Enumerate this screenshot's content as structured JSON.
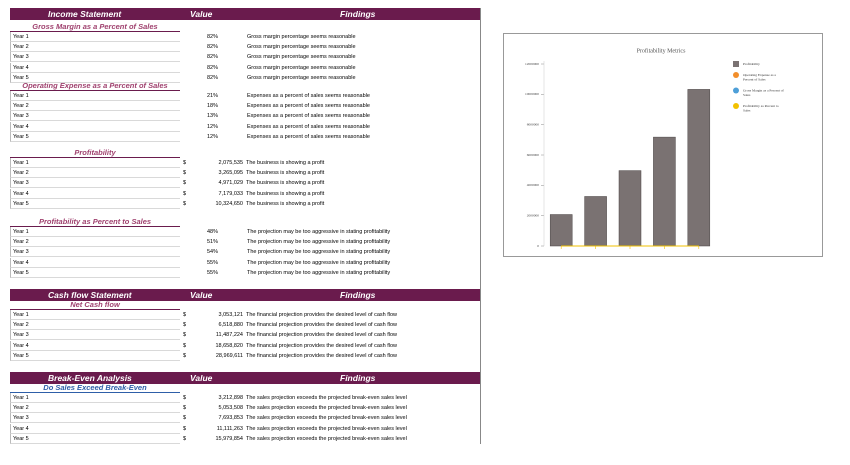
{
  "sections": [
    {
      "header": [
        "Income Statement",
        "Value",
        "Findings"
      ],
      "groups": [
        {
          "title": "Gross Margin as a Percent of Sales",
          "rows": [
            [
              "Year 1",
              "82%",
              "Gross margin percentage seems reasonable"
            ],
            [
              "Year 2",
              "82%",
              "Gross margin percentage seems reasonable"
            ],
            [
              "Year 3",
              "82%",
              "Gross margin percentage seems reasonable"
            ],
            [
              "Year 4",
              "82%",
              "Gross margin percentage seems reasonable"
            ],
            [
              "Year 5",
              "82%",
              "Gross margin percentage seems reasonable"
            ]
          ]
        },
        {
          "title": "Operating Expense as a Percent of Sales",
          "rows": [
            [
              "Year 1",
              "21%",
              "Expenses as a percent of sales seems reasonable"
            ],
            [
              "Year 2",
              "18%",
              "Expenses as a percent of sales seems reasonable"
            ],
            [
              "Year 3",
              "13%",
              "Expenses as a percent of sales seems reasonable"
            ],
            [
              "Year 4",
              "12%",
              "Expenses as a percent of sales seems reasonable"
            ],
            [
              "Year 5",
              "12%",
              "Expenses as a percent of sales seems reasonable"
            ]
          ]
        },
        {
          "title": "Profitability",
          "rows": [
            [
              "Year 1",
              "$",
              "2,075,535",
              "The business is showing a profit"
            ],
            [
              "Year 2",
              "$",
              "3,265,095",
              "The business is showing a profit"
            ],
            [
              "Year 3",
              "$",
              "4,971,029",
              "The business is showing a profit"
            ],
            [
              "Year 4",
              "$",
              "7,179,033",
              "The business is showing a profit"
            ],
            [
              "Year 5",
              "$",
              "10,324,650",
              "The business is showing a profit"
            ]
          ]
        },
        {
          "title": "Profitability as Percent to Sales",
          "rows": [
            [
              "Year 1",
              "48%",
              "The projection may be too aggressive in stating profitability"
            ],
            [
              "Year 2",
              "51%",
              "The projection may be too aggressive in stating profitability"
            ],
            [
              "Year 3",
              "54%",
              "The projection may be too aggressive in stating profitability"
            ],
            [
              "Year 4",
              "55%",
              "The projection may be too aggressive in stating profitability"
            ],
            [
              "Year 5",
              "55%",
              "The projection may be too aggressive in stating profitability"
            ]
          ]
        }
      ]
    },
    {
      "header": [
        "Cash flow Statement",
        "Value",
        "Findings"
      ],
      "groups": [
        {
          "title": "Net Cash flow",
          "rows": [
            [
              "Year 1",
              "$",
              "3,053,121",
              "The financial projection provides the desired level of cash flow"
            ],
            [
              "Year 2",
              "$",
              "6,518,880",
              "The financial projection provides the desired level of cash flow"
            ],
            [
              "Year 3",
              "$",
              "11,487,224",
              "The financial projection provides the desired level of cash flow"
            ],
            [
              "Year 4",
              "$",
              "18,658,820",
              "The financial projection provides the desired level of cash flow"
            ],
            [
              "Year 5",
              "$",
              "28,969,611",
              "The financial projection provides the desired level of cash flow"
            ]
          ]
        }
      ]
    },
    {
      "header": [
        "Break-Even Analysis",
        "Value",
        "Findings"
      ],
      "groups": [
        {
          "title": "Do Sales Exceed Break-Even",
          "rows": [
            [
              "Year 1",
              "$",
              "3,212,898",
              "The sales projection exceeds the projected break-even sales level"
            ],
            [
              "Year 2",
              "$",
              "5,053,508",
              "The sales projection exceeds the projected break-even sales level"
            ],
            [
              "Year 3",
              "$",
              "7,693,853",
              "The sales projection exceeds the projected break-even sales level"
            ],
            [
              "Year 4",
              "$",
              "11,111,263",
              "The sales projection exceeds the projected break-even sales level"
            ],
            [
              "Year 5",
              "$",
              "15,979,854",
              "The sales projection exceeds the projected break-even sales level"
            ]
          ]
        }
      ]
    }
  ],
  "chart_data": {
    "type": "bar",
    "title": "Profitability Metrics",
    "series": [
      {
        "name": "Profitability",
        "color": "#7a7272",
        "values": [
          2075535,
          3265095,
          4971029,
          7179033,
          10324650
        ]
      },
      {
        "name": "Operating Expense as a Percent of Sales",
        "color": "#f28e2b",
        "type": "line",
        "values": [
          0.21,
          0.18,
          0.13,
          0.12,
          0.12
        ]
      },
      {
        "name": "Gross Margin as a Percent of Sales",
        "color": "#4e9fd8",
        "type": "line",
        "values": [
          0.82,
          0.82,
          0.82,
          0.82,
          0.82
        ]
      },
      {
        "name": "Profitability as Percent to Sales",
        "color": "#f2c100",
        "type": "line",
        "values": [
          0.48,
          0.51,
          0.54,
          0.55,
          0.55
        ]
      }
    ],
    "ylim": [
      0,
      12000000
    ],
    "yticks": [
      0,
      2000000,
      4000000,
      6000000,
      8000000,
      10000000,
      12000000
    ],
    "legend": "right"
  }
}
